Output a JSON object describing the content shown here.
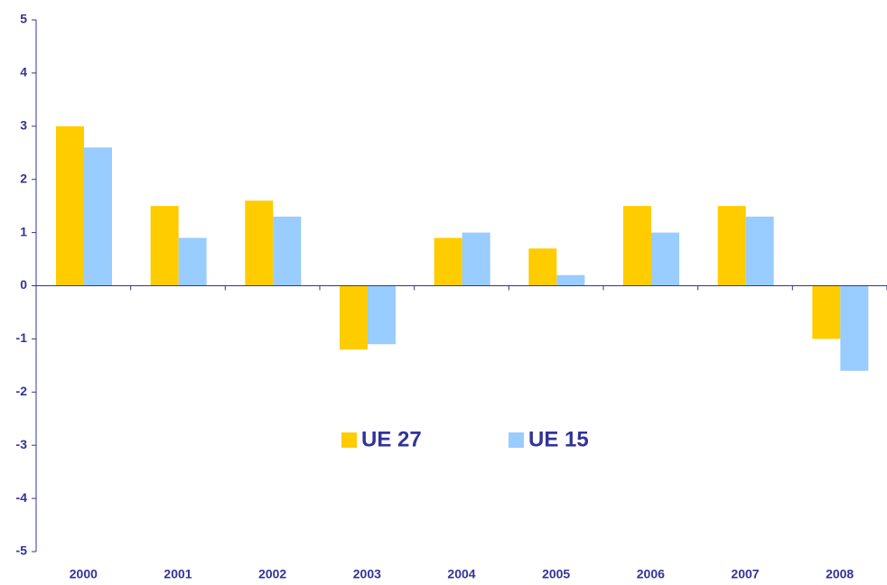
{
  "chart_data": {
    "type": "bar",
    "categories": [
      "2000",
      "2001",
      "2002",
      "2003",
      "2004",
      "2005",
      "2006",
      "2007",
      "2008"
    ],
    "series": [
      {
        "name": "UE 27",
        "color": "#ffcc00",
        "values": [
          3,
          1.5,
          1.6,
          -1.2,
          0.9,
          0.7,
          1.5,
          1.5,
          -1
        ]
      },
      {
        "name": "UE 15",
        "color": "#99ccff",
        "values": [
          2.6,
          0.9,
          1.3,
          -1.1,
          1,
          0.2,
          1,
          1.3,
          -1.6
        ]
      }
    ],
    "ylim": [
      -5,
      5
    ],
    "yticks": [
      -5,
      -4,
      -3,
      -2,
      -1,
      0,
      1,
      2,
      3,
      4,
      5
    ],
    "grid": false,
    "legend": "center"
  }
}
